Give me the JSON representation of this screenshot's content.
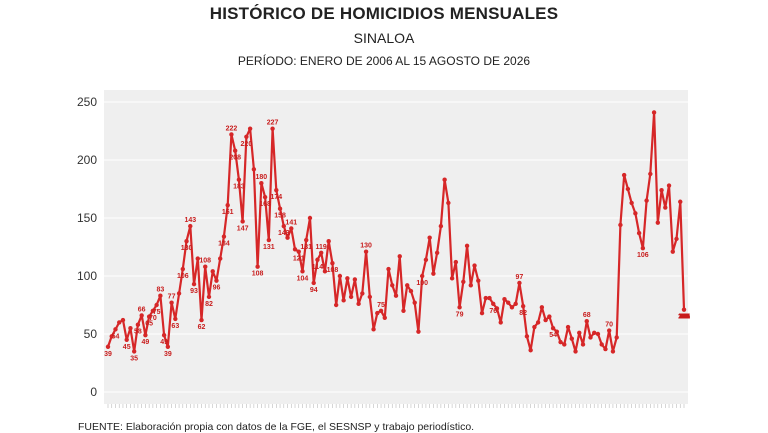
{
  "chart_data": {
    "type": "line",
    "title": "HISTÓRICO DE HOMICIDIOS MENSUALES",
    "subtitle": "SINALOA",
    "period": "PERÍODO: ENERO DE 2006 AL 15 AGOSTO DE 2026",
    "footer": "FUENTE: Elaboración propia con datos de la FGE, el SESNSP y trabajo periodístico.",
    "ylim": [
      0,
      250
    ],
    "yticks": [
      0,
      50,
      100,
      150,
      200,
      250
    ],
    "grid": true,
    "color": "#d62728",
    "series": [
      {
        "values": [
          39,
          48,
          54,
          60,
          62,
          45,
          55,
          35,
          58,
          66,
          49,
          65,
          70,
          75,
          83,
          49,
          39,
          77,
          63,
          85,
          106,
          130,
          143,
          93,
          115,
          62,
          108,
          82,
          104,
          96,
          115,
          134,
          161,
          222,
          208,
          183,
          147,
          220,
          227,
          192,
          108,
          180,
          168,
          131,
          227,
          174,
          158,
          143,
          133,
          141,
          123,
          121,
          104,
          131,
          150,
          94,
          114,
          120,
          104,
          130,
          111,
          75,
          100,
          79,
          98,
          82,
          97,
          76,
          85,
          121,
          82,
          54,
          68,
          70,
          64,
          106,
          92,
          83,
          117,
          70,
          92,
          87,
          77,
          52,
          100,
          114,
          133,
          102,
          120,
          143,
          183,
          163,
          98,
          112,
          73,
          95,
          126,
          92,
          109,
          96,
          68,
          81,
          81,
          76,
          72,
          60,
          80,
          77,
          73,
          76,
          94,
          74,
          48,
          36,
          56,
          60,
          73,
          62,
          65,
          55,
          52,
          43,
          41,
          56,
          46,
          35,
          51,
          41,
          61,
          47,
          51,
          50,
          41,
          37,
          53,
          35,
          47,
          144,
          187,
          175,
          163,
          154,
          137,
          124,
          165,
          188,
          241,
          146,
          174,
          159,
          178,
          121,
          132,
          164,
          71
        ]
      }
    ],
    "data_labels": [
      39,
      54,
      45,
      35,
      58,
      66,
      49,
      65,
      70,
      75,
      83,
      49,
      39,
      77,
      63,
      106,
      130,
      143,
      93,
      62,
      108,
      82,
      96,
      134,
      161,
      222,
      208,
      183,
      147,
      220,
      108,
      180,
      168,
      131,
      227,
      174,
      158,
      143,
      141,
      121,
      104,
      131,
      94,
      114,
      119,
      108,
      130,
      75,
      100,
      79,
      76,
      97,
      82,
      54,
      68,
      70,
      106,
      63,
      117,
      70,
      92,
      87,
      77,
      52,
      100,
      82,
      114,
      133,
      102,
      143,
      183,
      163,
      98,
      112,
      73,
      95,
      126,
      92,
      109,
      68,
      81,
      76,
      66,
      94,
      74,
      73,
      56,
      36,
      73,
      62,
      65,
      54,
      43,
      42,
      56,
      35,
      41,
      60,
      47,
      51,
      37,
      35,
      47,
      144,
      187,
      175,
      163,
      137,
      124,
      188,
      241,
      146,
      174,
      159,
      132,
      121,
      71
    ]
  }
}
